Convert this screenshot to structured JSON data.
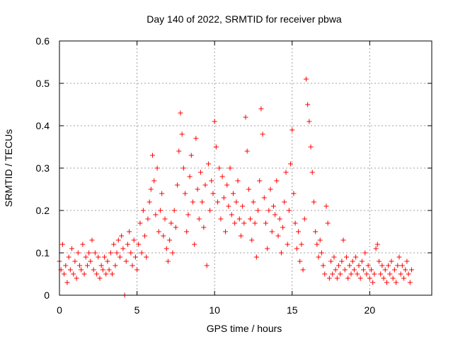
{
  "chart_data": {
    "type": "scatter",
    "title": "Day 140 of 2022, SRMTID for receiver pbwa",
    "xlabel": "GPS time / hours",
    "ylabel": "SRMTID / TECUs",
    "xlim": [
      0,
      24
    ],
    "ylim": [
      0,
      0.6
    ],
    "xticks": [
      "0",
      "5",
      "10",
      "15",
      "20"
    ],
    "yticks": [
      "0",
      "0.1",
      "0.2",
      "0.3",
      "0.4",
      "0.5",
      "0.6"
    ],
    "grid": true,
    "marker": "+",
    "color": "#ff0000",
    "series": [
      {
        "name": "SRMTID",
        "points": [
          [
            0.0,
            0.08
          ],
          [
            0.1,
            0.06
          ],
          [
            0.2,
            0.12
          ],
          [
            0.3,
            0.05
          ],
          [
            0.4,
            0.07
          ],
          [
            0.5,
            0.03
          ],
          [
            0.6,
            0.09
          ],
          [
            0.7,
            0.06
          ],
          [
            0.8,
            0.11
          ],
          [
            0.9,
            0.05
          ],
          [
            1.0,
            0.08
          ],
          [
            1.1,
            0.04
          ],
          [
            1.2,
            0.1
          ],
          [
            1.3,
            0.07
          ],
          [
            1.4,
            0.06
          ],
          [
            1.5,
            0.12
          ],
          [
            1.6,
            0.05
          ],
          [
            1.7,
            0.09
          ],
          [
            1.8,
            0.07
          ],
          [
            1.9,
            0.1
          ],
          [
            2.0,
            0.08
          ],
          [
            2.1,
            0.13
          ],
          [
            2.2,
            0.06
          ],
          [
            2.3,
            0.1
          ],
          [
            2.4,
            0.05
          ],
          [
            2.5,
            0.09
          ],
          [
            2.6,
            0.04
          ],
          [
            2.7,
            0.07
          ],
          [
            2.8,
            0.06
          ],
          [
            2.9,
            0.09
          ],
          [
            3.0,
            0.05
          ],
          [
            3.1,
            0.08
          ],
          [
            3.2,
            0.06
          ],
          [
            3.3,
            0.1
          ],
          [
            3.4,
            0.05
          ],
          [
            3.5,
            0.12
          ],
          [
            3.6,
            0.07
          ],
          [
            3.7,
            0.1
          ],
          [
            3.8,
            0.13
          ],
          [
            3.9,
            0.09
          ],
          [
            4.0,
            0.14
          ],
          [
            4.1,
            0.11
          ],
          [
            4.2,
            0.0
          ],
          [
            4.3,
            0.08
          ],
          [
            4.4,
            0.12
          ],
          [
            4.5,
            0.15
          ],
          [
            4.6,
            0.1
          ],
          [
            4.7,
            0.07
          ],
          [
            4.8,
            0.13
          ],
          [
            4.9,
            0.09
          ],
          [
            5.0,
            0.06
          ],
          [
            5.1,
            0.12
          ],
          [
            5.2,
            0.17
          ],
          [
            5.3,
            0.1
          ],
          [
            5.4,
            0.2
          ],
          [
            5.5,
            0.14
          ],
          [
            5.6,
            0.09
          ],
          [
            5.7,
            0.18
          ],
          [
            5.8,
            0.22
          ],
          [
            5.9,
            0.25
          ],
          [
            6.0,
            0.33
          ],
          [
            6.1,
            0.27
          ],
          [
            6.2,
            0.19
          ],
          [
            6.3,
            0.3
          ],
          [
            6.4,
            0.15
          ],
          [
            6.5,
            0.2
          ],
          [
            6.6,
            0.24
          ],
          [
            6.7,
            0.14
          ],
          [
            6.8,
            0.18
          ],
          [
            6.9,
            0.11
          ],
          [
            7.0,
            0.08
          ],
          [
            7.1,
            0.13
          ],
          [
            7.2,
            0.17
          ],
          [
            7.3,
            0.1
          ],
          [
            7.4,
            0.2
          ],
          [
            7.5,
            0.16
          ],
          [
            7.6,
            0.26
          ],
          [
            7.7,
            0.34
          ],
          [
            7.8,
            0.43
          ],
          [
            7.9,
            0.38
          ],
          [
            8.0,
            0.3
          ],
          [
            8.1,
            0.24
          ],
          [
            8.2,
            0.15
          ],
          [
            8.3,
            0.19
          ],
          [
            8.4,
            0.28
          ],
          [
            8.5,
            0.33
          ],
          [
            8.6,
            0.22
          ],
          [
            8.7,
            0.12
          ],
          [
            8.8,
            0.37
          ],
          [
            8.9,
            0.25
          ],
          [
            9.0,
            0.18
          ],
          [
            9.1,
            0.29
          ],
          [
            9.2,
            0.22
          ],
          [
            9.3,
            0.16
          ],
          [
            9.4,
            0.26
          ],
          [
            9.5,
            0.07
          ],
          [
            9.6,
            0.31
          ],
          [
            9.7,
            0.2
          ],
          [
            9.8,
            0.27
          ],
          [
            9.9,
            0.24
          ],
          [
            10.0,
            0.41
          ],
          [
            10.1,
            0.35
          ],
          [
            10.2,
            0.22
          ],
          [
            10.3,
            0.3
          ],
          [
            10.4,
            0.18
          ],
          [
            10.5,
            0.28
          ],
          [
            10.6,
            0.23
          ],
          [
            10.7,
            0.15
          ],
          [
            10.8,
            0.26
          ],
          [
            10.9,
            0.21
          ],
          [
            11.0,
            0.3
          ],
          [
            11.1,
            0.19
          ],
          [
            11.2,
            0.24
          ],
          [
            11.3,
            0.17
          ],
          [
            11.4,
            0.22
          ],
          [
            11.5,
            0.27
          ],
          [
            11.6,
            0.18
          ],
          [
            11.7,
            0.14
          ],
          [
            11.8,
            0.21
          ],
          [
            11.9,
            0.17
          ],
          [
            12.0,
            0.42
          ],
          [
            12.1,
            0.34
          ],
          [
            12.2,
            0.25
          ],
          [
            12.3,
            0.18
          ],
          [
            12.4,
            0.13
          ],
          [
            12.5,
            0.22
          ],
          [
            12.6,
            0.17
          ],
          [
            12.7,
            0.09
          ],
          [
            12.8,
            0.2
          ],
          [
            12.9,
            0.27
          ],
          [
            13.0,
            0.44
          ],
          [
            13.1,
            0.38
          ],
          [
            13.2,
            0.23
          ],
          [
            13.3,
            0.17
          ],
          [
            13.4,
            0.11
          ],
          [
            13.5,
            0.2
          ],
          [
            13.6,
            0.25
          ],
          [
            13.7,
            0.15
          ],
          [
            13.8,
            0.21
          ],
          [
            13.9,
            0.19
          ],
          [
            14.0,
            0.27
          ],
          [
            14.1,
            0.14
          ],
          [
            14.2,
            0.18
          ],
          [
            14.3,
            0.1
          ],
          [
            14.4,
            0.16
          ],
          [
            14.5,
            0.22
          ],
          [
            14.6,
            0.29
          ],
          [
            14.7,
            0.12
          ],
          [
            14.8,
            0.2
          ],
          [
            14.9,
            0.31
          ],
          [
            15.0,
            0.39
          ],
          [
            15.1,
            0.24
          ],
          [
            15.2,
            0.17
          ],
          [
            15.3,
            0.11
          ],
          [
            15.4,
            0.15
          ],
          [
            15.5,
            0.08
          ],
          [
            15.6,
            0.12
          ],
          [
            15.7,
            0.06
          ],
          [
            15.8,
            0.18
          ],
          [
            15.9,
            0.51
          ],
          [
            16.0,
            0.45
          ],
          [
            16.1,
            0.41
          ],
          [
            16.2,
            0.35
          ],
          [
            16.3,
            0.29
          ],
          [
            16.4,
            0.22
          ],
          [
            16.5,
            0.15
          ],
          [
            16.6,
            0.12
          ],
          [
            16.7,
            0.09
          ],
          [
            16.8,
            0.13
          ],
          [
            16.9,
            0.1
          ],
          [
            17.0,
            0.07
          ],
          [
            17.1,
            0.05
          ],
          [
            17.2,
            0.21
          ],
          [
            17.3,
            0.17
          ],
          [
            17.4,
            0.04
          ],
          [
            17.5,
            0.08
          ],
          [
            17.6,
            0.05
          ],
          [
            17.7,
            0.09
          ],
          [
            17.8,
            0.06
          ],
          [
            17.9,
            0.04
          ],
          [
            18.0,
            0.07
          ],
          [
            18.1,
            0.05
          ],
          [
            18.2,
            0.08
          ],
          [
            18.3,
            0.13
          ],
          [
            18.4,
            0.06
          ],
          [
            18.5,
            0.09
          ],
          [
            18.6,
            0.04
          ],
          [
            18.7,
            0.07
          ],
          [
            18.8,
            0.05
          ],
          [
            18.9,
            0.08
          ],
          [
            19.0,
            0.06
          ],
          [
            19.1,
            0.09
          ],
          [
            19.2,
            0.05
          ],
          [
            19.3,
            0.07
          ],
          [
            19.4,
            0.04
          ],
          [
            19.5,
            0.08
          ],
          [
            19.6,
            0.06
          ],
          [
            19.7,
            0.1
          ],
          [
            19.8,
            0.05
          ],
          [
            19.9,
            0.07
          ],
          [
            20.0,
            0.04
          ],
          [
            20.1,
            0.06
          ],
          [
            20.2,
            0.03
          ],
          [
            20.3,
            0.05
          ],
          [
            20.4,
            0.11
          ],
          [
            20.5,
            0.12
          ],
          [
            20.6,
            0.08
          ],
          [
            20.7,
            0.05
          ],
          [
            20.8,
            0.07
          ],
          [
            20.9,
            0.04
          ],
          [
            21.0,
            0.06
          ],
          [
            21.1,
            0.03
          ],
          [
            21.2,
            0.07
          ],
          [
            21.3,
            0.05
          ],
          [
            21.4,
            0.08
          ],
          [
            21.5,
            0.04
          ],
          [
            21.6,
            0.06
          ],
          [
            21.7,
            0.03
          ],
          [
            21.8,
            0.07
          ],
          [
            21.9,
            0.09
          ],
          [
            22.0,
            0.05
          ],
          [
            22.1,
            0.07
          ],
          [
            22.2,
            0.04
          ],
          [
            22.3,
            0.06
          ],
          [
            22.4,
            0.08
          ],
          [
            22.5,
            0.05
          ],
          [
            22.6,
            0.03
          ],
          [
            22.7,
            0.06
          ]
        ]
      }
    ]
  }
}
